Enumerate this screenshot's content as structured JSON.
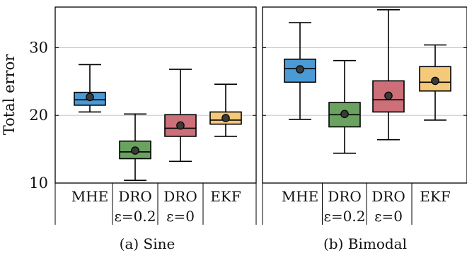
{
  "chart_data": [
    {
      "type": "boxplot",
      "caption": "(a) Sine",
      "ylabel": "Total error",
      "ylim": [
        10,
        36
      ],
      "yticks": [
        10,
        20,
        30
      ],
      "grid": true,
      "categories": [
        {
          "line1": "MHE",
          "line2": ""
        },
        {
          "line1": "DRO",
          "line2": "ε=0.2"
        },
        {
          "line1": "DRO",
          "line2": "ε=0"
        },
        {
          "line1": "EKF",
          "line2": ""
        }
      ],
      "boxes": [
        {
          "color": "#4a9ad5",
          "whisker_low": 20.5,
          "q1": 21.5,
          "median": 22.3,
          "q3": 23.4,
          "whisker_high": 27.5,
          "mean": 22.7
        },
        {
          "color": "#6aa35f",
          "whisker_low": 10.4,
          "q1": 13.6,
          "median": 14.6,
          "q3": 16.2,
          "whisker_high": 20.2,
          "mean": 14.8
        },
        {
          "color": "#cc6f78",
          "whisker_low": 13.2,
          "q1": 16.9,
          "median": 18.1,
          "q3": 20.1,
          "whisker_high": 26.8,
          "mean": 18.5
        },
        {
          "color": "#f5c97a",
          "whisker_low": 16.9,
          "q1": 18.7,
          "median": 19.3,
          "q3": 20.5,
          "whisker_high": 24.6,
          "mean": 19.6
        }
      ]
    },
    {
      "type": "boxplot",
      "caption": "(b) Bimodal",
      "ylabel": "",
      "ylim": [
        10,
        36
      ],
      "yticks": [
        10,
        20,
        30
      ],
      "grid": true,
      "categories": [
        {
          "line1": "MHE",
          "line2": ""
        },
        {
          "line1": "DRO",
          "line2": "ε=0.2"
        },
        {
          "line1": "DRO",
          "line2": "ε=0"
        },
        {
          "line1": "EKF",
          "line2": ""
        }
      ],
      "boxes": [
        {
          "color": "#4a9ad5",
          "whisker_low": 19.4,
          "q1": 24.9,
          "median": 26.9,
          "q3": 28.3,
          "whisker_high": 33.7,
          "mean": 26.8
        },
        {
          "color": "#6aa35f",
          "whisker_low": 14.4,
          "q1": 18.3,
          "median": 20.1,
          "q3": 21.9,
          "whisker_high": 28.1,
          "mean": 20.2
        },
        {
          "color": "#cc6f78",
          "whisker_low": 16.4,
          "q1": 20.5,
          "median": 22.3,
          "q3": 25.1,
          "whisker_high": 35.6,
          "mean": 22.9
        },
        {
          "color": "#f5c97a",
          "whisker_low": 19.3,
          "q1": 23.6,
          "median": 24.9,
          "q3": 27.2,
          "whisker_high": 30.4,
          "mean": 25.1
        }
      ]
    }
  ]
}
